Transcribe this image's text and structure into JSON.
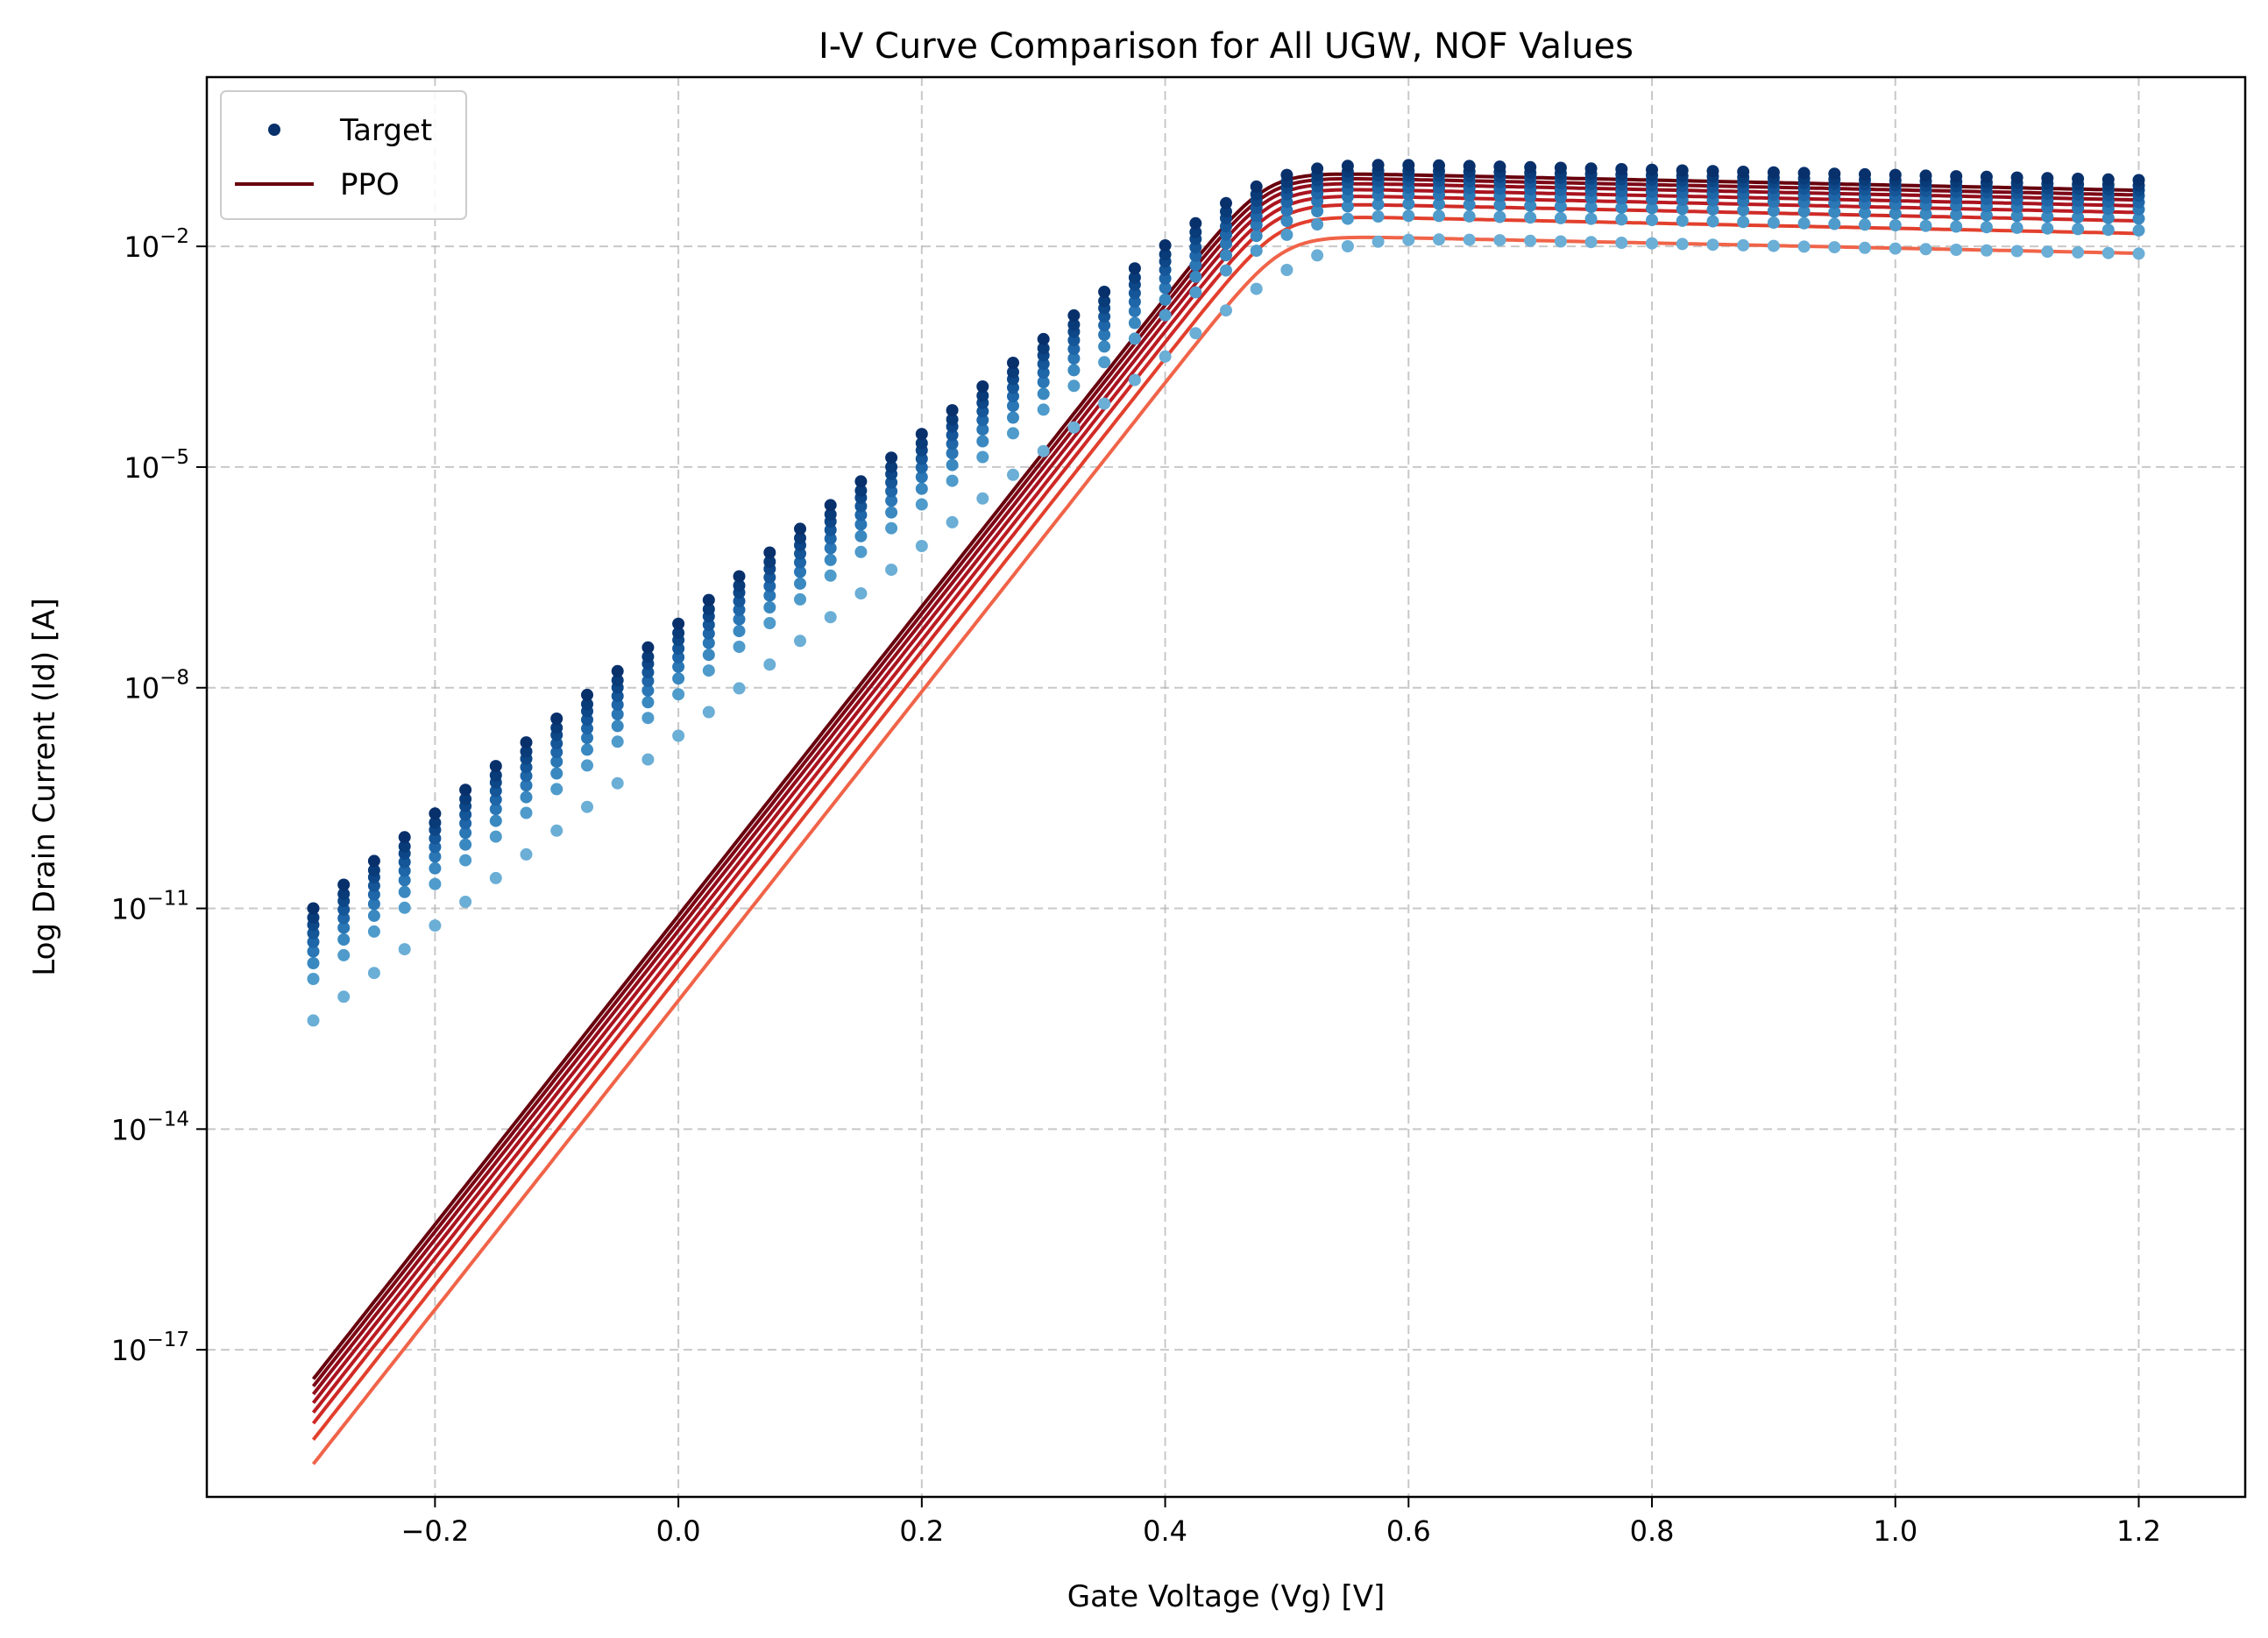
{
  "chart_data": {
    "type": "line",
    "title": "I-V Curve Comparison for All UGW, NOF Values",
    "xlabel": "Gate Voltage (Vg) [V]",
    "ylabel": "Log Drain Current (Id) [A]",
    "xlim": [
      -0.3875,
      1.2875
    ],
    "ylim": [
      1e-19,
      2.0
    ],
    "yscale": "log",
    "grid": true,
    "legend_location": "upper left",
    "x_ticks": [
      -0.2,
      0.0,
      0.2,
      0.4,
      0.6,
      0.8,
      1.0,
      1.2
    ],
    "x_tick_labels": [
      "−0.2",
      "0.0",
      "0.2",
      "0.4",
      "0.6",
      "0.8",
      "1.0",
      "1.2"
    ],
    "y_ticks": [
      {
        "value": 1e-17,
        "base": "10",
        "exp": "−17"
      },
      {
        "value": 1e-14,
        "base": "10",
        "exp": "−14"
      },
      {
        "value": 1e-11,
        "base": "10",
        "exp": "−11"
      },
      {
        "value": 1e-08,
        "base": "10",
        "exp": "−8"
      },
      {
        "value": 1e-05,
        "base": "10",
        "exp": "−5"
      },
      {
        "value": 0.01,
        "base": "10",
        "exp": "−2"
      }
    ],
    "legend": [
      {
        "label": "Target",
        "kind": "marker",
        "color": "#08306b"
      },
      {
        "label": "PPO",
        "kind": "line",
        "color": "#67000d"
      }
    ],
    "vg_range": {
      "start": -0.3,
      "end": 1.2,
      "step": 0.025
    },
    "target_series": [
      {
        "color": "#6baed6",
        "ioff": 3e-13,
        "ion": 0.014
      },
      {
        "color": "#4f9bcb",
        "ioff": 1.1e-12,
        "ion": 0.029
      },
      {
        "color": "#3a88c0",
        "ioff": 1.8e-12,
        "ion": 0.042
      },
      {
        "color": "#2b77b5",
        "ioff": 2.6e-12,
        "ion": 0.056
      },
      {
        "color": "#1e66a8",
        "ioff": 3.5e-12,
        "ion": 0.07
      },
      {
        "color": "#145698",
        "ioff": 4.6e-12,
        "ion": 0.086
      },
      {
        "color": "#0d4787",
        "ioff": 6e-12,
        "ion": 0.102
      },
      {
        "color": "#093b79",
        "ioff": 7.5e-12,
        "ion": 0.118
      },
      {
        "color": "#08306b",
        "ioff": 1e-11,
        "ion": 0.14
      }
    ],
    "ppo_series": [
      {
        "color": "#f06449",
        "ioff": 2.8e-19,
        "ion": 0.0145
      },
      {
        "color": "#e2402d",
        "ioff": 6e-19,
        "ion": 0.027
      },
      {
        "color": "#cf2a26",
        "ioff": 1e-18,
        "ion": 0.04
      },
      {
        "color": "#bb1b22",
        "ioff": 1.4e-18,
        "ion": 0.052
      },
      {
        "color": "#a8131f",
        "ioff": 1.9e-18,
        "ion": 0.064
      },
      {
        "color": "#920d1b",
        "ioff": 2.5e-18,
        "ion": 0.077
      },
      {
        "color": "#7c0816",
        "ioff": 3.2e-18,
        "ion": 0.09
      },
      {
        "color": "#67000d",
        "ioff": 4e-18,
        "ion": 0.104
      }
    ],
    "target_model": {
      "vth": 0.42,
      "subthreshold_decades_per_volt": 12.9,
      "knee_v": 0.5
    },
    "ppo_model": {
      "vth": 0.39,
      "subthreshold_decades_per_volt": 21.0,
      "knee_v": 0.47
    }
  }
}
